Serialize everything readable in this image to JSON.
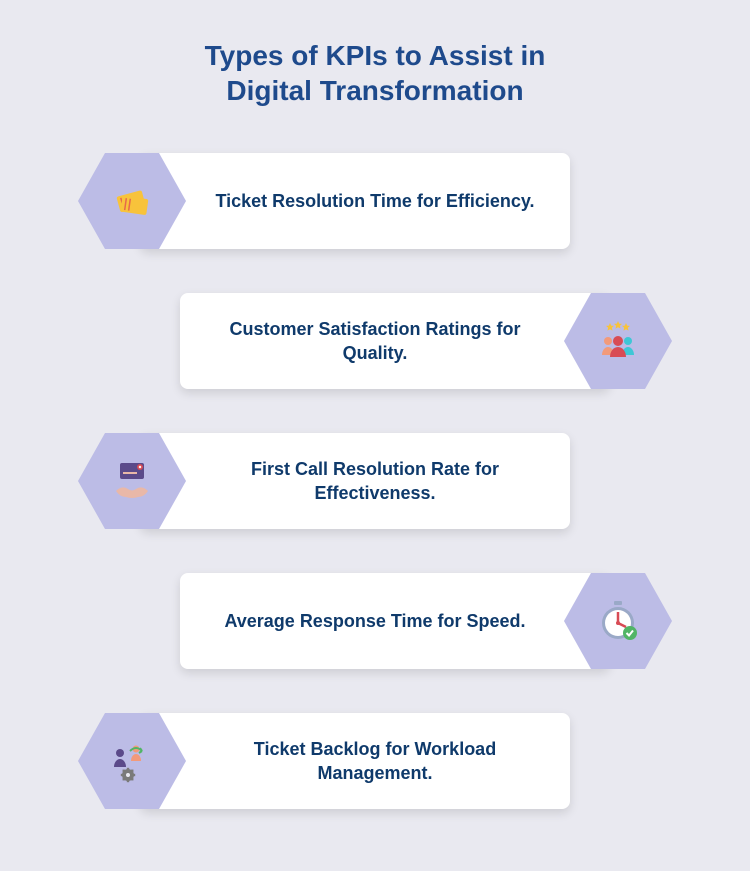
{
  "title": "Types of KPIs to Assist in\nDigital Transformation",
  "title_color": "#1e4a8c",
  "title_fontsize": 28,
  "background_color": "#e9e9f0",
  "card_text_fontsize": 18,
  "card_text_color": "#0f3a6b",
  "hexagon_fill": "#bcbce6",
  "card_bg": "#ffffff",
  "items": [
    {
      "label": "Ticket Resolution Time for Efficiency.",
      "side": "left",
      "icon": "tickets"
    },
    {
      "label": "Customer Satisfaction Ratings for Quality.",
      "side": "right",
      "icon": "rating-people"
    },
    {
      "label": "First Call Resolution Rate for Effectiveness.",
      "side": "left",
      "icon": "handshake-card"
    },
    {
      "label": "Average Response Time for Speed.",
      "side": "right",
      "icon": "stopwatch-check"
    },
    {
      "label": "Ticket Backlog for Workload Management.",
      "side": "left",
      "icon": "workflow-people"
    }
  ],
  "icons": {
    "tickets": {
      "type": "tickets",
      "c1": "#f8c33b",
      "c2": "#e7694a"
    },
    "rating-people": {
      "type": "rating-people",
      "star": "#f8c33b",
      "p1": "#f29a7a",
      "p2": "#d84b55",
      "p3": "#3ec7d6"
    },
    "handshake-card": {
      "type": "handshake-card",
      "card": "#5b4a8a",
      "accent": "#d84b55",
      "hand": "#e9b8a8"
    },
    "stopwatch-check": {
      "type": "stopwatch-check",
      "rim": "#9aa9c7",
      "face": "#ffffff",
      "hand": "#d84b55",
      "check": "#51b566"
    },
    "workflow-people": {
      "type": "workflow-people",
      "p1": "#5b4a8a",
      "p2": "#f29a7a",
      "gear": "#7a7a7a",
      "arrow": "#51b566"
    }
  }
}
